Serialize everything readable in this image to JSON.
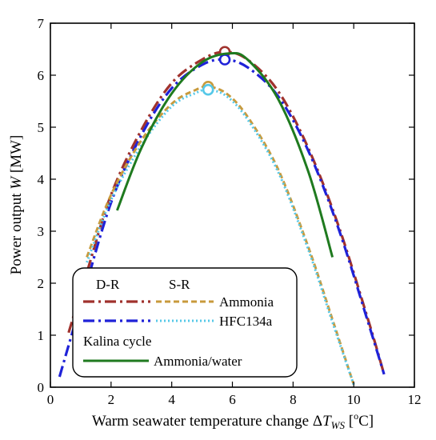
{
  "chart_data": {
    "type": "line",
    "xlabel_parts": [
      "Warm seawater temperature change Δ",
      "T",
      "WS",
      " [",
      "o",
      "C]"
    ],
    "ylabel_parts": [
      "Power output ",
      "W",
      " [MW]"
    ],
    "xlim": [
      0,
      12
    ],
    "ylim": [
      0,
      7
    ],
    "xticks": [
      "0",
      "2",
      "4",
      "6",
      "8",
      "10",
      "12"
    ],
    "yticks": [
      "0",
      "1",
      "2",
      "3",
      "4",
      "5",
      "6",
      "7"
    ],
    "grid": false,
    "legend_position": "bottom-left",
    "legend": {
      "col_dr": "D-R",
      "col_sr": "S-R",
      "row_ammonia": "Ammonia",
      "row_hfc": "HFC134a",
      "kalina_title": "Kalina cycle",
      "row_kalina": "Ammonia/water"
    },
    "series": [
      {
        "name": "D-R Ammonia",
        "color": "#a0322d",
        "style": "dash-dot",
        "peak": [
          5.75,
          6.45
        ],
        "x": [
          0.6,
          1.2,
          2.0,
          3.0,
          4.0,
          5.0,
          5.75,
          6.5,
          7.5,
          8.5,
          9.5,
          10.5,
          11.0
        ],
        "y": [
          1.05,
          2.2,
          3.7,
          4.95,
          5.85,
          6.3,
          6.45,
          6.3,
          5.7,
          4.6,
          3.1,
          1.25,
          0.25
        ]
      },
      {
        "name": "D-R HFC134a",
        "color": "#1f22d8",
        "style": "dash-dot",
        "peak": [
          5.75,
          6.3
        ],
        "x": [
          0.3,
          1.0,
          2.0,
          3.0,
          4.0,
          5.0,
          5.75,
          6.5,
          7.5,
          8.5,
          9.5,
          10.5,
          11.0
        ],
        "y": [
          0.2,
          1.6,
          3.55,
          4.85,
          5.75,
          6.2,
          6.3,
          6.15,
          5.6,
          4.55,
          3.05,
          1.2,
          0.25
        ]
      },
      {
        "name": "S-R Ammonia",
        "color": "#c89a3c",
        "style": "dash",
        "peak": [
          5.2,
          5.78
        ],
        "x": [
          1.2,
          2.0,
          3.0,
          4.0,
          4.8,
          5.2,
          5.8,
          6.5,
          7.5,
          8.5,
          9.3,
          10.0
        ],
        "y": [
          2.5,
          3.7,
          4.75,
          5.45,
          5.72,
          5.78,
          5.65,
          5.2,
          4.2,
          2.7,
          1.3,
          0.05
        ]
      },
      {
        "name": "S-R HFC134a",
        "color": "#55c8e8",
        "style": "dot",
        "peak": [
          5.2,
          5.72
        ],
        "x": [
          1.2,
          2.0,
          3.0,
          4.0,
          4.8,
          5.2,
          5.8,
          6.5,
          7.5,
          8.5,
          9.3,
          10.0
        ],
        "y": [
          2.4,
          3.6,
          4.65,
          5.4,
          5.66,
          5.72,
          5.6,
          5.15,
          4.15,
          2.65,
          1.25,
          0.05
        ]
      },
      {
        "name": "Kalina Ammonia/water",
        "color": "#1f7a1f",
        "style": "solid",
        "x": [
          2.2,
          3.0,
          4.0,
          5.0,
          5.9,
          6.5,
          7.5,
          8.5,
          9.3
        ],
        "y": [
          3.4,
          4.6,
          5.65,
          6.25,
          6.42,
          6.3,
          5.55,
          4.15,
          2.5
        ]
      }
    ]
  }
}
